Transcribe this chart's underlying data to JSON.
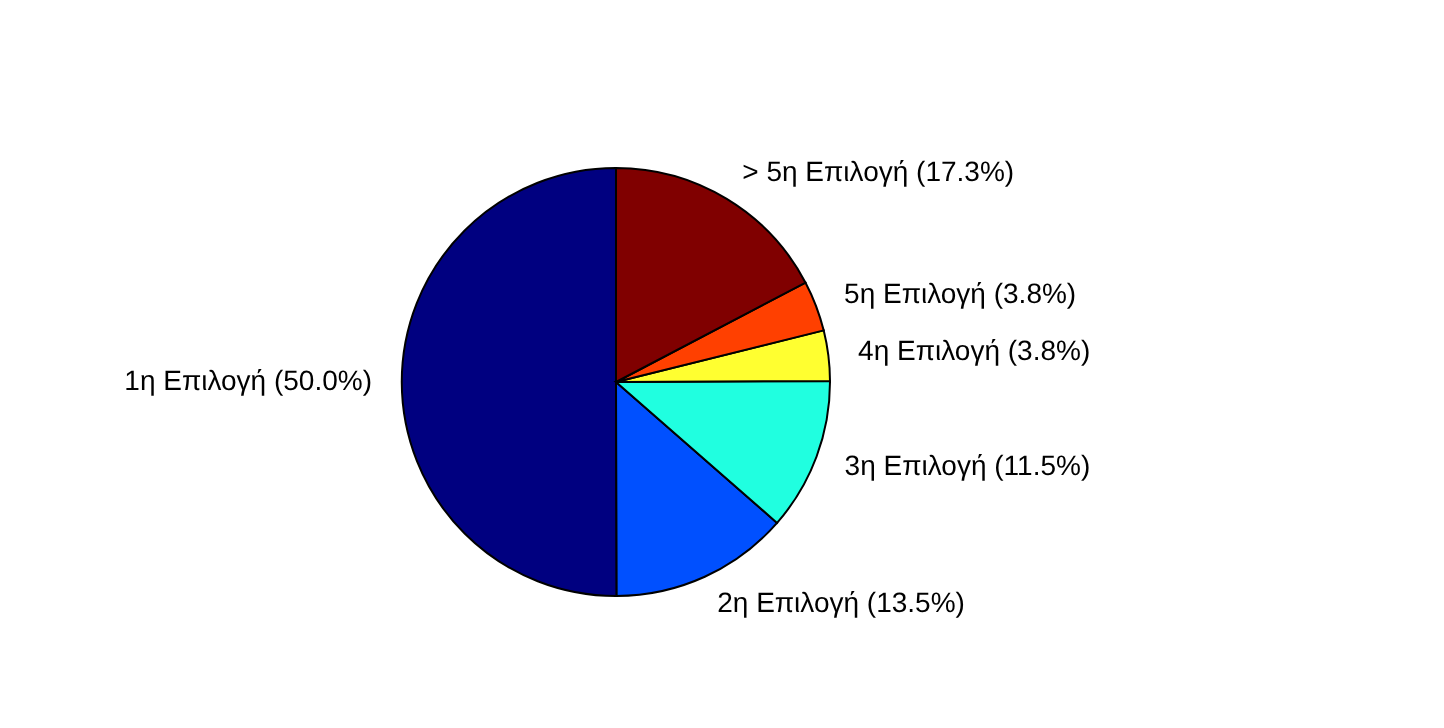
{
  "chart_data": {
    "type": "pie",
    "categories": [
      "1η Επιλογή",
      "2η Επιλογή",
      "3η Επιλογή",
      "4η Επιλογή",
      "5η Επιλογή",
      "> 5η Επιλογή"
    ],
    "values": [
      50.0,
      13.5,
      11.5,
      3.8,
      3.8,
      17.3
    ],
    "value_labels": [
      "(50.0%)",
      "(13.5%)",
      "(11.5%)",
      "(3.8%)",
      "(3.8%)",
      "(17.3%)"
    ],
    "colors": [
      "#000080",
      "#0050ff",
      "#20ffe0",
      "#ffff30",
      "#ff4000",
      "#800000"
    ]
  }
}
